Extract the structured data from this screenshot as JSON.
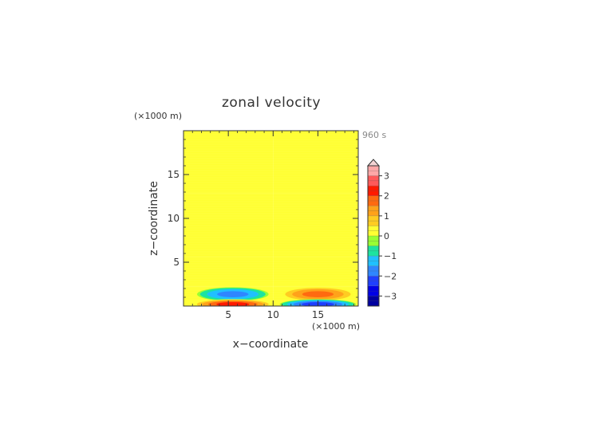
{
  "chart_data": {
    "type": "heatmap",
    "title": "zonal velocity",
    "xlabel": "x−coordinate",
    "ylabel": "z−coordinate",
    "x_unit": "(×1000 m)",
    "y_unit": "(×1000 m)",
    "time_label": "960 s",
    "xlim": [
      0,
      19.5
    ],
    "ylim": [
      0,
      20
    ],
    "x_ticks": [
      5,
      10,
      15
    ],
    "y_ticks": [
      5,
      10,
      15
    ],
    "x_tick_labels": [
      "5",
      "10",
      "15"
    ],
    "y_tick_labels": [
      "5",
      "10",
      "15"
    ],
    "grid": false,
    "colorbar": {
      "levels": [
        -3.5,
        -3.25,
        -3,
        -2.75,
        -2.5,
        -2.25,
        -2,
        -1.75,
        -1.5,
        -1.25,
        -1,
        -0.75,
        -0.5,
        -0.25,
        0,
        0.25,
        0.5,
        0.75,
        1,
        1.25,
        1.5,
        1.75,
        2,
        2.25,
        2.5,
        2.75,
        3,
        3.25,
        3.5
      ],
      "bands": [
        {
          "from": -3.5,
          "to": -3.0,
          "color": "#0000a0"
        },
        {
          "from": -3.0,
          "to": -2.5,
          "color": "#0000e6"
        },
        {
          "from": -2.5,
          "to": -2.0,
          "color": "#1f3fff"
        },
        {
          "from": -2.0,
          "to": -1.5,
          "color": "#2f86ff"
        },
        {
          "from": -1.5,
          "to": -1.0,
          "color": "#20c0ff"
        },
        {
          "from": -1.0,
          "to": -0.5,
          "color": "#1de3a0"
        },
        {
          "from": -0.5,
          "to": 0.0,
          "color": "#99ff33"
        },
        {
          "from": 0.0,
          "to": 0.5,
          "color": "#ffff33"
        },
        {
          "from": 0.5,
          "to": 1.0,
          "color": "#ffcc22"
        },
        {
          "from": 1.0,
          "to": 1.5,
          "color": "#ffa21a"
        },
        {
          "from": 1.5,
          "to": 2.0,
          "color": "#ff6a10"
        },
        {
          "from": 2.0,
          "to": 2.5,
          "color": "#ff1a00"
        },
        {
          "from": 2.5,
          "to": 3.0,
          "color": "#ff5a5a"
        },
        {
          "from": 3.0,
          "to": 3.5,
          "color": "#ffa8a8"
        }
      ],
      "tick_values": [
        3,
        2,
        1,
        0,
        -1,
        -2,
        -3
      ],
      "tick_labels": [
        "3",
        "2",
        "1",
        "0",
        "−1",
        "−2",
        "−3"
      ],
      "extend": "max"
    },
    "field": {
      "layers_left": [
        {
          "z": [
            18.5,
            20
          ],
          "value": 0.0
        },
        {
          "z": [
            12.9,
            18.5
          ],
          "value": 0.25
        },
        {
          "z": [
            5.6,
            12.9
          ],
          "value": 0.0
        },
        {
          "z": [
            2.2,
            5.6
          ],
          "value": 0.25
        },
        {
          "z": [
            0,
            2.2
          ],
          "value": 0.0
        }
      ],
      "layers_right": [
        {
          "z": [
            18.5,
            20
          ],
          "value": 0.25
        },
        {
          "z": [
            12.9,
            18.5
          ],
          "value": 0.0
        },
        {
          "z": [
            5.6,
            12.9
          ],
          "value": 0.25
        },
        {
          "z": [
            2.2,
            5.6
          ],
          "value": 0.0
        },
        {
          "z": [
            0,
            2.2
          ],
          "value": 0.25
        }
      ],
      "x_split": 10,
      "cells": [
        {
          "x": 5.5,
          "z": 1.35,
          "rx": 4.3,
          "rz": 0.85,
          "peak": -1.8
        },
        {
          "x": 15.0,
          "z": 1.35,
          "rx": 4.3,
          "rz": 0.85,
          "peak": 1.8
        },
        {
          "x": 5.5,
          "z": 0.2,
          "rx": 4.5,
          "rz": 0.6,
          "peak": 2.4
        },
        {
          "x": 15.0,
          "z": 0.2,
          "rx": 4.5,
          "rz": 0.6,
          "peak": -2.4
        }
      ]
    }
  }
}
